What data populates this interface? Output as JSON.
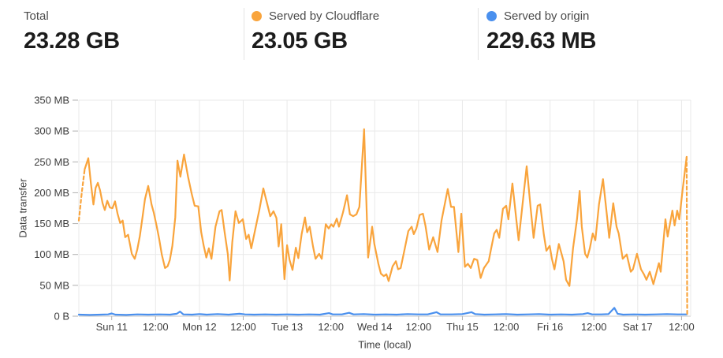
{
  "stats": [
    {
      "label": "Total",
      "value": "23.28 GB"
    },
    {
      "label": "Served by Cloudflare",
      "value": "23.05 GB",
      "dot_color": "#f9a43c"
    },
    {
      "label": "Served by origin",
      "value": "229.63 MB",
      "dot_color": "#4a90ee"
    }
  ],
  "colors": {
    "cloudflare_orange": "#f9a43c",
    "origin_blue": "#4a90ee",
    "gridline": "#e9e9e9",
    "axis_line": "#c4c4c4",
    "tick_mark": "#b0b0b0",
    "text": "#3d3d3d"
  },
  "chart_data": {
    "type": "line",
    "xlabel": "Time (local)",
    "ylabel": "Data transfer",
    "y_unit": "MB",
    "x_unit": "hours_from_Sun11_00:00",
    "ylim": [
      0,
      350
    ],
    "x_range_hours": [
      -9,
      158.5
    ],
    "grid": true,
    "legend_position": "top-stat-cards",
    "y_ticks": [
      {
        "v": 0,
        "label": "0 B"
      },
      {
        "v": 50,
        "label": "50 MB"
      },
      {
        "v": 100,
        "label": "100 MB"
      },
      {
        "v": 150,
        "label": "150 MB"
      },
      {
        "v": 200,
        "label": "200 MB"
      },
      {
        "v": 250,
        "label": "250 MB"
      },
      {
        "v": 300,
        "label": "300 MB"
      },
      {
        "v": 350,
        "label": "350 MB"
      }
    ],
    "x_ticks": [
      {
        "h": 0,
        "label": "Sun 11"
      },
      {
        "h": 12,
        "label": "12:00"
      },
      {
        "h": 24,
        "label": "Mon 12"
      },
      {
        "h": 36,
        "label": "12:00"
      },
      {
        "h": 48,
        "label": "Tue 13"
      },
      {
        "h": 60,
        "label": "12:00"
      },
      {
        "h": 72,
        "label": "Wed 14"
      },
      {
        "h": 84,
        "label": "12:00"
      },
      {
        "h": 96,
        "label": "Thu 15"
      },
      {
        "h": 108,
        "label": "12:00"
      },
      {
        "h": 120,
        "label": "Fri 16"
      },
      {
        "h": 132,
        "label": "12:00"
      },
      {
        "h": 144,
        "label": "Sat 17"
      },
      {
        "h": 156,
        "label": "12:00"
      }
    ],
    "series": [
      {
        "name": "Served by Cloudflare",
        "color": "#f9a43c",
        "head_dash": [
          [
            -9,
            155
          ],
          [
            -8.2,
            200
          ],
          [
            -7.4,
            238
          ]
        ],
        "tail_dash": [
          [
            157.4,
            258
          ],
          [
            157.55,
            2
          ]
        ],
        "points": [
          [
            -7.4,
            238
          ],
          [
            -6.4,
            256
          ],
          [
            -5.7,
            215
          ],
          [
            -5,
            181
          ],
          [
            -4.4,
            208
          ],
          [
            -3.8,
            216
          ],
          [
            -3.2,
            204
          ],
          [
            -2.5,
            183
          ],
          [
            -1.9,
            172
          ],
          [
            -1.2,
            187
          ],
          [
            -0.5,
            176
          ],
          [
            0.2,
            175
          ],
          [
            0.9,
            186
          ],
          [
            1.6,
            166
          ],
          [
            2.3,
            151
          ],
          [
            3,
            155
          ],
          [
            3.7,
            128
          ],
          [
            4.5,
            132
          ],
          [
            5.5,
            101
          ],
          [
            6.3,
            93
          ],
          [
            7,
            108
          ],
          [
            7.7,
            130
          ],
          [
            8.4,
            159
          ],
          [
            9.1,
            190
          ],
          [
            10,
            211
          ],
          [
            10.9,
            181
          ],
          [
            11.5,
            168
          ],
          [
            12.3,
            146
          ],
          [
            13,
            125
          ],
          [
            13.7,
            100
          ],
          [
            14.6,
            78
          ],
          [
            15.3,
            81
          ],
          [
            15.9,
            91
          ],
          [
            16.6,
            114
          ],
          [
            17.4,
            160
          ],
          [
            18,
            252
          ],
          [
            18.8,
            226
          ],
          [
            19.8,
            262
          ],
          [
            20.9,
            226
          ],
          [
            21.9,
            198
          ],
          [
            22.7,
            179
          ],
          [
            23.7,
            178
          ],
          [
            24.5,
            136
          ],
          [
            25.2,
            114
          ],
          [
            25.9,
            95
          ],
          [
            26.6,
            110
          ],
          [
            27.3,
            93
          ],
          [
            28.4,
            145
          ],
          [
            29.5,
            170
          ],
          [
            30.1,
            172
          ],
          [
            30.9,
            136
          ],
          [
            31.8,
            100
          ],
          [
            32.3,
            58
          ],
          [
            33,
            120
          ],
          [
            33.9,
            170
          ],
          [
            34.8,
            151
          ],
          [
            35.9,
            157
          ],
          [
            36.8,
            125
          ],
          [
            37.5,
            132
          ],
          [
            38.2,
            110
          ],
          [
            39.2,
            138
          ],
          [
            40.4,
            172
          ],
          [
            41.5,
            207
          ],
          [
            42.6,
            181
          ],
          [
            43.4,
            162
          ],
          [
            44.3,
            170
          ],
          [
            45.1,
            159
          ],
          [
            45.7,
            113
          ],
          [
            46.4,
            149
          ],
          [
            47.3,
            60
          ],
          [
            48,
            115
          ],
          [
            48.7,
            91
          ],
          [
            49.5,
            75
          ],
          [
            50.4,
            111
          ],
          [
            51.1,
            94
          ],
          [
            52,
            133
          ],
          [
            52.9,
            160
          ],
          [
            53.5,
            136
          ],
          [
            54.2,
            145
          ],
          [
            55.1,
            113
          ],
          [
            55.8,
            93
          ],
          [
            56.8,
            101
          ],
          [
            57.5,
            93
          ],
          [
            58.6,
            149
          ],
          [
            59.4,
            142
          ],
          [
            60.1,
            149
          ],
          [
            60.7,
            145
          ],
          [
            61.6,
            158
          ],
          [
            62.2,
            145
          ],
          [
            63.3,
            168
          ],
          [
            64.4,
            196
          ],
          [
            65.2,
            165
          ],
          [
            66.1,
            162
          ],
          [
            67,
            165
          ],
          [
            67.8,
            177
          ],
          [
            69.1,
            303
          ],
          [
            70.2,
            95
          ],
          [
            71.3,
            145
          ],
          [
            71.9,
            117
          ],
          [
            73,
            85
          ],
          [
            73.7,
            69
          ],
          [
            74.5,
            65
          ],
          [
            75.2,
            68
          ],
          [
            75.8,
            57
          ],
          [
            76.9,
            81
          ],
          [
            77.8,
            89
          ],
          [
            78.4,
            76
          ],
          [
            79.1,
            78
          ],
          [
            80.1,
            106
          ],
          [
            81.2,
            138
          ],
          [
            82.1,
            145
          ],
          [
            82.7,
            133
          ],
          [
            83.4,
            142
          ],
          [
            84.3,
            164
          ],
          [
            85.2,
            166
          ],
          [
            85.9,
            146
          ],
          [
            86.9,
            108
          ],
          [
            88,
            128
          ],
          [
            89.2,
            104
          ],
          [
            90.3,
            155
          ],
          [
            92,
            206
          ],
          [
            92.9,
            177
          ],
          [
            93.7,
            177
          ],
          [
            94.9,
            104
          ],
          [
            95.7,
            166
          ],
          [
            96.7,
            80
          ],
          [
            97.5,
            85
          ],
          [
            98.3,
            78
          ],
          [
            99.2,
            93
          ],
          [
            100.1,
            91
          ],
          [
            101,
            62
          ],
          [
            101.9,
            78
          ],
          [
            103.2,
            89
          ],
          [
            103.9,
            110
          ],
          [
            104.7,
            134
          ],
          [
            105.4,
            140
          ],
          [
            106.1,
            127
          ],
          [
            107.1,
            174
          ],
          [
            108,
            179
          ],
          [
            108.6,
            157
          ],
          [
            109.7,
            215
          ],
          [
            110.8,
            155
          ],
          [
            111.4,
            123
          ],
          [
            113.6,
            243
          ],
          [
            114.7,
            174
          ],
          [
            115.5,
            127
          ],
          [
            116.6,
            179
          ],
          [
            117.3,
            181
          ],
          [
            118.3,
            132
          ],
          [
            119,
            106
          ],
          [
            119.9,
            114
          ],
          [
            120.5,
            93
          ],
          [
            121.2,
            76
          ],
          [
            122.4,
            117
          ],
          [
            123.7,
            89
          ],
          [
            124.4,
            59
          ],
          [
            125.3,
            49
          ],
          [
            126.3,
            110
          ],
          [
            127.4,
            158
          ],
          [
            128.1,
            203
          ],
          [
            128.7,
            145
          ],
          [
            129.6,
            101
          ],
          [
            130.2,
            95
          ],
          [
            130.9,
            110
          ],
          [
            131.7,
            134
          ],
          [
            132.4,
            123
          ],
          [
            133.4,
            181
          ],
          [
            134.5,
            222
          ],
          [
            135.6,
            162
          ],
          [
            136.2,
            127
          ],
          [
            137.3,
            183
          ],
          [
            138.2,
            145
          ],
          [
            138.8,
            134
          ],
          [
            139.9,
            93
          ],
          [
            141,
            100
          ],
          [
            142.1,
            72
          ],
          [
            142.7,
            76
          ],
          [
            143.8,
            101
          ],
          [
            144.9,
            76
          ],
          [
            145.7,
            68
          ],
          [
            146.4,
            59
          ],
          [
            147.3,
            72
          ],
          [
            148.3,
            52
          ],
          [
            149.8,
            86
          ],
          [
            150.3,
            72
          ],
          [
            151.6,
            157
          ],
          [
            152.2,
            129
          ],
          [
            153.5,
            171
          ],
          [
            154.1,
            147
          ],
          [
            154.8,
            171
          ],
          [
            155.4,
            157
          ],
          [
            156.3,
            205
          ],
          [
            157.4,
            258
          ]
        ]
      },
      {
        "name": "Served by origin",
        "color": "#4a90ee",
        "points": [
          [
            -9,
            2.5
          ],
          [
            -6,
            2
          ],
          [
            -3,
            2.5
          ],
          [
            -1,
            3
          ],
          [
            0,
            4.5
          ],
          [
            1,
            2.5
          ],
          [
            4,
            2
          ],
          [
            7,
            3
          ],
          [
            10,
            2.5
          ],
          [
            13,
            3
          ],
          [
            16,
            2.5
          ],
          [
            17.8,
            4
          ],
          [
            18.7,
            7.5
          ],
          [
            19.6,
            3
          ],
          [
            22,
            2.5
          ],
          [
            24,
            3.5
          ],
          [
            26,
            2.5
          ],
          [
            29,
            3.5
          ],
          [
            32,
            2.5
          ],
          [
            35,
            4
          ],
          [
            36.5,
            3
          ],
          [
            39,
            2.5
          ],
          [
            42,
            3
          ],
          [
            45,
            2.5
          ],
          [
            48,
            3
          ],
          [
            51,
            2.5
          ],
          [
            54,
            3
          ],
          [
            57,
            2.5
          ],
          [
            59.5,
            5
          ],
          [
            60.5,
            3
          ],
          [
            63,
            3
          ],
          [
            65,
            5.5
          ],
          [
            66.2,
            3
          ],
          [
            69,
            3.5
          ],
          [
            72,
            2.5
          ],
          [
            75,
            3
          ],
          [
            78,
            2.5
          ],
          [
            81,
            3.5
          ],
          [
            84,
            3
          ],
          [
            86.5,
            3
          ],
          [
            88.9,
            6.5
          ],
          [
            90,
            3
          ],
          [
            93,
            3
          ],
          [
            96,
            3.5
          ],
          [
            98.5,
            6.5
          ],
          [
            99.5,
            3.5
          ],
          [
            102,
            2.5
          ],
          [
            105,
            3
          ],
          [
            108,
            3.5
          ],
          [
            111,
            2.5
          ],
          [
            114,
            3
          ],
          [
            117,
            3.5
          ],
          [
            120,
            2.5
          ],
          [
            123,
            3
          ],
          [
            126,
            2.5
          ],
          [
            129,
            3.5
          ],
          [
            130.3,
            5
          ],
          [
            131.5,
            3
          ],
          [
            134,
            3
          ],
          [
            136,
            3.5
          ],
          [
            137.6,
            13.5
          ],
          [
            138.5,
            4
          ],
          [
            140,
            2.5
          ],
          [
            143,
            3
          ],
          [
            146,
            2.5
          ],
          [
            149,
            3
          ],
          [
            152,
            3.5
          ],
          [
            155,
            3
          ],
          [
            157.4,
            3
          ]
        ]
      }
    ]
  }
}
